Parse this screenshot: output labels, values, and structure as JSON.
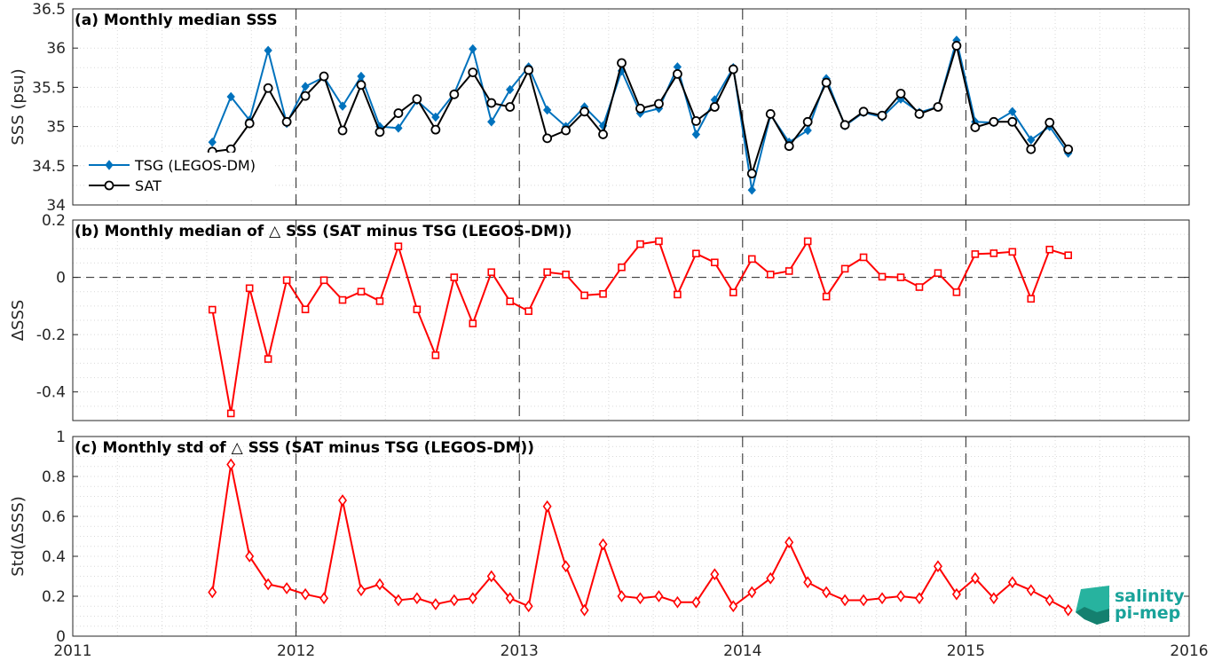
{
  "colors": {
    "tsg": "#0072bd",
    "sat": "#000000",
    "delta": "#ff0000",
    "logo": "#1aa39a"
  },
  "logo": {
    "line1": "salinity",
    "line2": "pi-mep"
  },
  "chart_data": [
    {
      "type": "line",
      "title": "(a) Monthly median SSS",
      "ylabel": "SSS (psu)",
      "xlabel": "",
      "xlim": [
        2011,
        2016
      ],
      "ylim": [
        34,
        36.5
      ],
      "yticks": [
        "34",
        "34.5",
        "35",
        "35.5",
        "36",
        "36.5"
      ],
      "xticks": [
        "2011",
        "2012",
        "2013",
        "2014",
        "2015",
        "2016"
      ],
      "grid": true,
      "legend_position": "bottom-left",
      "x": [
        "2011-08",
        "2011-09",
        "2011-10",
        "2011-11",
        "2011-12",
        "2012-01",
        "2012-02",
        "2012-03",
        "2012-04",
        "2012-05",
        "2012-06",
        "2012-07",
        "2012-08",
        "2012-09",
        "2012-10",
        "2012-11",
        "2012-12",
        "2013-01",
        "2013-02",
        "2013-03",
        "2013-04",
        "2013-05",
        "2013-06",
        "2013-07",
        "2013-08",
        "2013-09",
        "2013-10",
        "2013-11",
        "2013-12",
        "2014-01",
        "2014-02",
        "2014-03",
        "2014-04",
        "2014-05",
        "2014-06",
        "2014-07",
        "2014-08",
        "2014-09",
        "2014-10",
        "2014-11",
        "2014-12",
        "2015-01",
        "2015-02",
        "2015-03",
        "2015-04",
        "2015-05",
        "2015-06"
      ],
      "series": [
        {
          "name": "TSG (LEGOS-DM)",
          "marker": "diamond",
          "values": [
            34.8,
            35.38,
            35.08,
            35.97,
            35.04,
            35.51,
            35.63,
            35.26,
            35.64,
            35.0,
            34.98,
            35.33,
            35.12,
            35.42,
            35.99,
            35.06,
            35.47,
            35.76,
            35.21,
            35.0,
            35.25,
            35.01,
            35.71,
            35.17,
            35.23,
            35.76,
            34.9,
            35.34,
            35.75,
            34.19,
            35.15,
            34.8,
            34.95,
            35.61,
            35.01,
            35.18,
            35.12,
            35.35,
            35.18,
            35.25,
            36.1,
            35.06,
            35.05,
            35.19,
            34.83,
            35.0,
            34.66
          ]
        },
        {
          "name": "SAT",
          "marker": "circle",
          "values": [
            34.68,
            34.71,
            35.04,
            35.49,
            35.06,
            35.39,
            35.64,
            34.95,
            35.53,
            34.93,
            35.17,
            35.35,
            34.96,
            35.41,
            35.69,
            35.3,
            35.25,
            35.72,
            34.85,
            34.95,
            35.19,
            34.9,
            35.81,
            35.23,
            35.29,
            35.67,
            35.07,
            35.25,
            35.73,
            34.4,
            35.16,
            34.75,
            35.06,
            35.56,
            35.02,
            35.19,
            35.14,
            35.42,
            35.16,
            35.25,
            36.03,
            34.99,
            35.06,
            35.06,
            34.71,
            35.05,
            34.71
          ]
        }
      ]
    },
    {
      "type": "line",
      "title": "(b) Monthly median of △ SSS (SAT minus TSG (LEGOS-DM))",
      "ylabel": "ΔSSS",
      "xlabel": "",
      "xlim": [
        2011,
        2016
      ],
      "ylim": [
        -0.5,
        0.2
      ],
      "yticks": [
        "-0.4",
        "-0.2",
        "0",
        "0.2"
      ],
      "grid": true,
      "zero_line": true,
      "x": [
        "2011-08",
        "2011-09",
        "2011-10",
        "2011-11",
        "2011-12",
        "2012-01",
        "2012-02",
        "2012-03",
        "2012-04",
        "2012-05",
        "2012-06",
        "2012-07",
        "2012-08",
        "2012-09",
        "2012-10",
        "2012-11",
        "2012-12",
        "2013-01",
        "2013-02",
        "2013-03",
        "2013-04",
        "2013-05",
        "2013-06",
        "2013-07",
        "2013-08",
        "2013-09",
        "2013-10",
        "2013-11",
        "2013-12",
        "2014-01",
        "2014-02",
        "2014-03",
        "2014-04",
        "2014-05",
        "2014-06",
        "2014-07",
        "2014-08",
        "2014-09",
        "2014-10",
        "2014-11",
        "2014-12",
        "2015-01",
        "2015-02",
        "2015-03",
        "2015-04",
        "2015-05",
        "2015-06"
      ],
      "series": [
        {
          "marker": "square",
          "values": [
            -0.113,
            -0.475,
            -0.038,
            -0.285,
            -0.01,
            -0.112,
            -0.01,
            -0.079,
            -0.05,
            -0.083,
            0.108,
            -0.112,
            -0.272,
            0.0,
            -0.161,
            0.018,
            -0.084,
            -0.118,
            0.018,
            0.01,
            -0.063,
            -0.058,
            0.035,
            0.116,
            0.126,
            -0.06,
            0.083,
            0.052,
            -0.053,
            0.064,
            0.01,
            0.022,
            0.126,
            -0.067,
            0.03,
            0.07,
            0.002,
            0.0,
            -0.034,
            0.015,
            -0.052,
            0.081,
            0.084,
            0.089,
            -0.075,
            0.097,
            0.077
          ]
        }
      ]
    },
    {
      "type": "line",
      "title": "(c) Monthly std of △ SSS (SAT minus TSG (LEGOS-DM))",
      "ylabel": "Std(ΔSSS)",
      "xlabel": "",
      "xlim": [
        2011,
        2016
      ],
      "ylim": [
        0,
        1
      ],
      "yticks": [
        "0",
        "0.2",
        "0.4",
        "0.6",
        "0.8",
        "1"
      ],
      "xticks": [
        "2011",
        "2012",
        "2013",
        "2014",
        "2015",
        "2016"
      ],
      "grid": true,
      "x": [
        "2011-08",
        "2011-09",
        "2011-10",
        "2011-11",
        "2011-12",
        "2012-01",
        "2012-02",
        "2012-03",
        "2012-04",
        "2012-05",
        "2012-06",
        "2012-07",
        "2012-08",
        "2012-09",
        "2012-10",
        "2012-11",
        "2012-12",
        "2013-01",
        "2013-02",
        "2013-03",
        "2013-04",
        "2013-05",
        "2013-06",
        "2013-07",
        "2013-08",
        "2013-09",
        "2013-10",
        "2013-11",
        "2013-12",
        "2014-01",
        "2014-02",
        "2014-03",
        "2014-04",
        "2014-05",
        "2014-06",
        "2014-07",
        "2014-08",
        "2014-09",
        "2014-10",
        "2014-11",
        "2014-12",
        "2015-01",
        "2015-02",
        "2015-03",
        "2015-04",
        "2015-05",
        "2015-06"
      ],
      "series": [
        {
          "marker": "diamond-open",
          "values": [
            0.22,
            0.86,
            0.4,
            0.26,
            0.24,
            0.21,
            0.19,
            0.68,
            0.23,
            0.26,
            0.18,
            0.19,
            0.16,
            0.18,
            0.19,
            0.3,
            0.19,
            0.15,
            0.65,
            0.35,
            0.13,
            0.46,
            0.2,
            0.19,
            0.2,
            0.17,
            0.17,
            0.31,
            0.15,
            0.22,
            0.29,
            0.47,
            0.27,
            0.22,
            0.18,
            0.18,
            0.19,
            0.2,
            0.19,
            0.35,
            0.21,
            0.29,
            0.19,
            0.27,
            0.23,
            0.18,
            0.13
          ]
        }
      ]
    }
  ]
}
